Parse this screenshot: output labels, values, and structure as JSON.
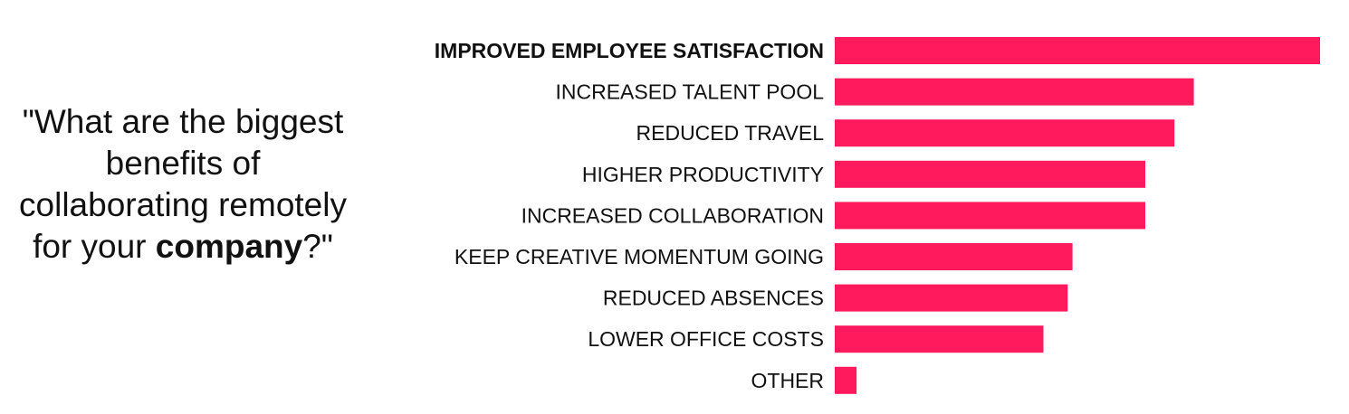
{
  "question": {
    "part1": "\"What are the biggest benefits of collaborating remotely for your ",
    "emphasis": "company",
    "part2": "?\""
  },
  "chart_data": {
    "type": "bar",
    "orientation": "horizontal",
    "categories": [
      "IMPROVED EMPLOYEE SATISFACTION",
      "INCREASED TALENT POOL",
      "REDUCED TRAVEL",
      "HIGHER PRODUCTIVITY",
      "INCREASED COLLABORATION",
      "KEEP CREATIVE MOMENTUM GOING",
      "REDUCED ABSENCES",
      "LOWER OFFICE COSTS",
      "OTHER"
    ],
    "values": [
      100,
      74,
      70,
      64,
      64,
      49,
      48,
      43,
      4.5
    ],
    "highlight_index": 0,
    "xlim": [
      0,
      100
    ],
    "bar_color": "#FF1A5E",
    "grid": false,
    "legend": "none",
    "title": "",
    "xlabel": "",
    "ylabel": ""
  }
}
